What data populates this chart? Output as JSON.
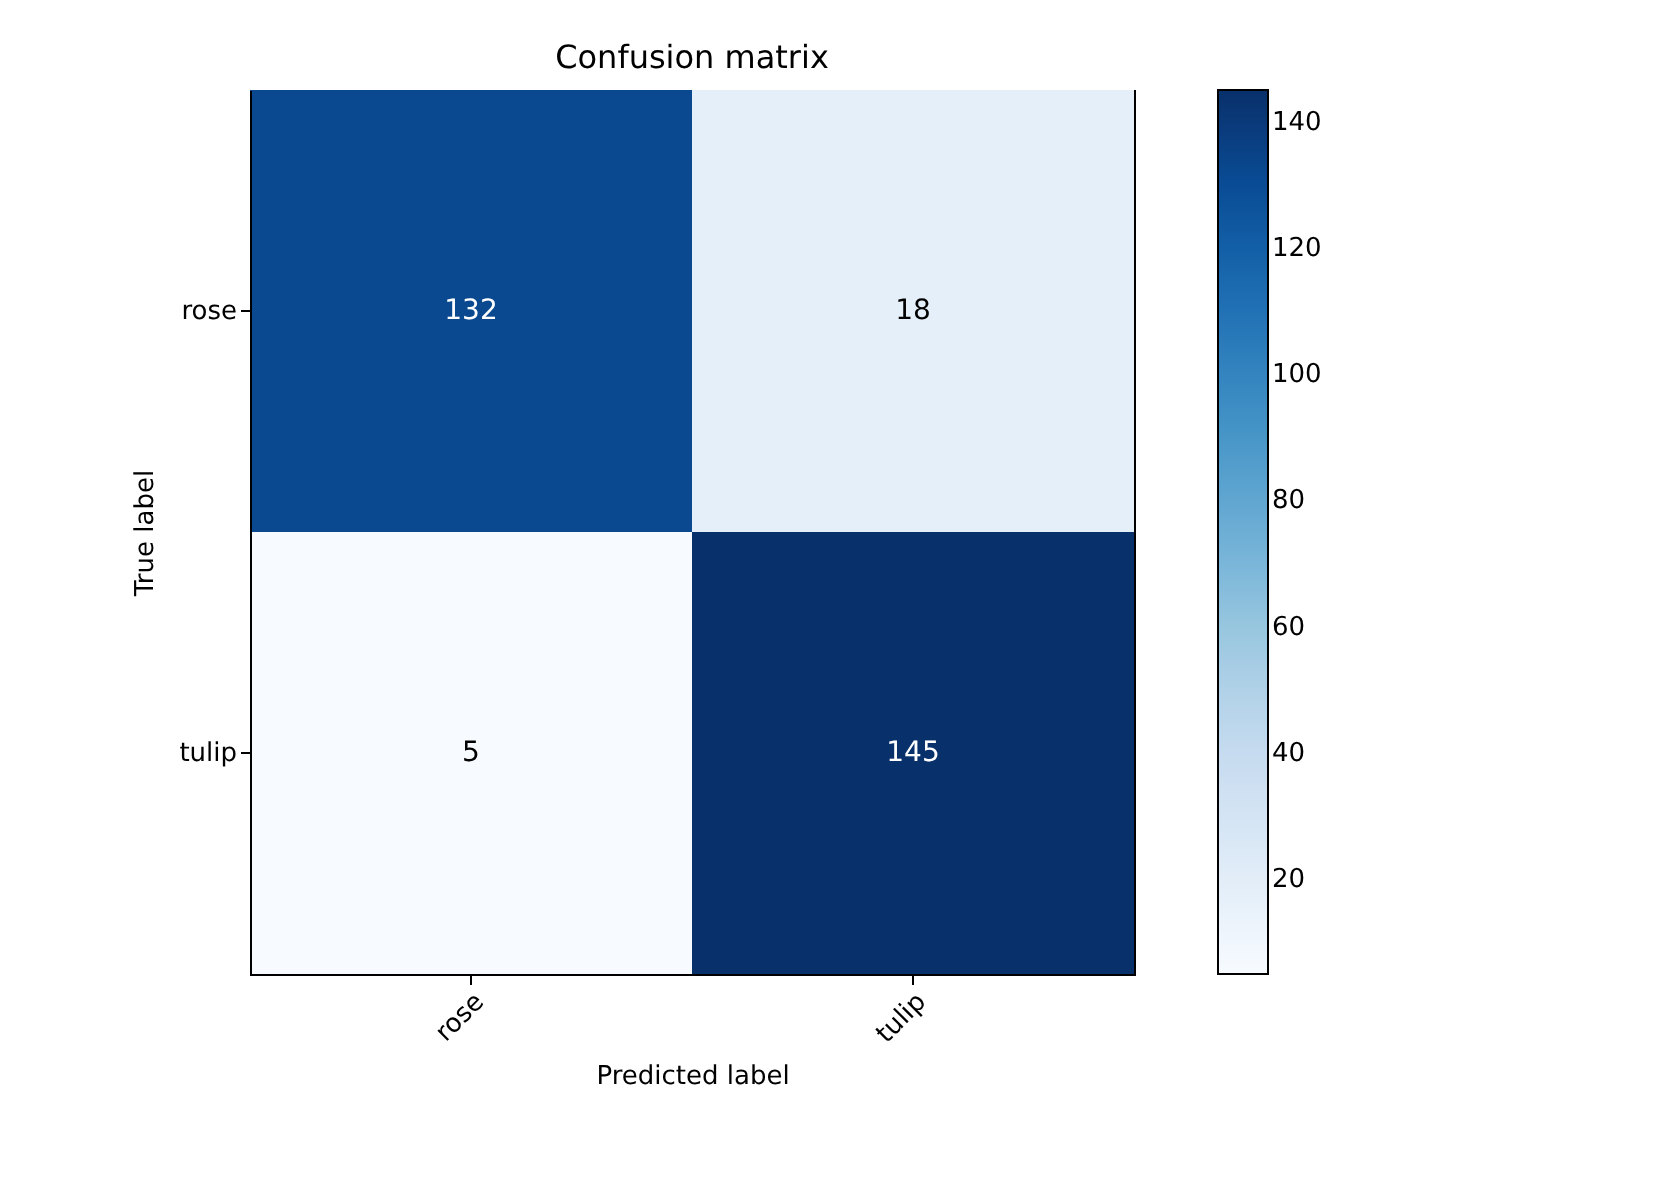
{
  "chart_data": {
    "type": "heatmap",
    "title": "Confusion matrix",
    "xlabel": "Predicted label",
    "ylabel": "True label",
    "categories": [
      "rose",
      "tulip"
    ],
    "y_categories": [
      "rose",
      "tulip"
    ],
    "cells": [
      [
        132,
        18
      ],
      [
        5,
        145
      ]
    ],
    "clim": [
      5,
      145
    ],
    "cticks": [
      20,
      40,
      60,
      80,
      100,
      120,
      140
    ],
    "data_labels": true,
    "grid": false
  }
}
